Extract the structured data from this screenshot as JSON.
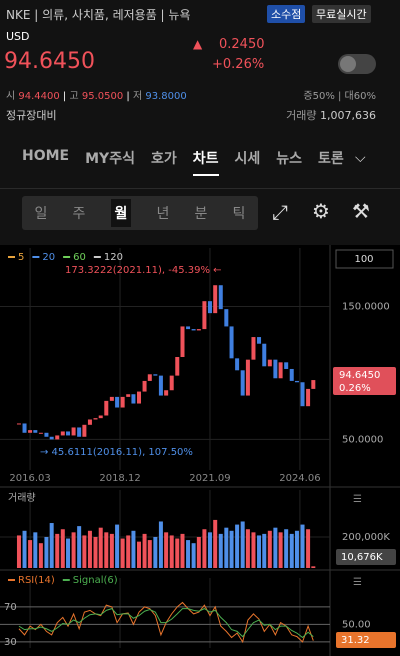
{
  "header": {
    "ticker": "NKE",
    "sector": "의류, 사치품, 레저용품",
    "exchange": "뉴욕",
    "badges": [
      "소수점",
      "무료실시간"
    ],
    "currency": "USD",
    "price": "94.6450",
    "change": "0.2450",
    "change_pct": "+0.26%",
    "open_label": "시",
    "open": "94.4400",
    "high_label": "고",
    "high": "95.0500",
    "low_label": "저",
    "low": "93.8000",
    "margin": "증50% | 대60%",
    "basis": "정규장대비",
    "volume_label": "거래량",
    "volume": "1,007,636"
  },
  "tabs": [
    "HOME",
    "MY주식",
    "호가",
    "차트",
    "시세",
    "뉴스",
    "토론"
  ],
  "active_tab": 3,
  "periods": [
    "일",
    "주",
    "월",
    "년",
    "분",
    "틱"
  ],
  "active_period": 2,
  "chart_data": [
    {
      "type": "candlestick",
      "count_box": "100",
      "moving_averages": [
        {
          "name": "5",
          "color": "#e8a33c"
        },
        {
          "name": "20",
          "color": "#4f8fe8"
        },
        {
          "name": "60",
          "color": "#6fcf5a"
        },
        {
          "name": "120",
          "color": "#c9c9c9"
        }
      ],
      "annotations": [
        "173.3222(2021.11), -45.39% ←",
        "→ 45.6111(2016.11), 107.50%"
      ],
      "price_tag": [
        "94.6450",
        "0.26%"
      ],
      "up_color": "#f0525a",
      "down_color": "#3f7fe0",
      "x": [
        2015.83,
        2016.0,
        2016.17,
        2016.33,
        2016.5,
        2016.67,
        2016.83,
        2017.0,
        2017.17,
        2017.33,
        2017.5,
        2017.67,
        2017.83,
        2018.0,
        2018.17,
        2018.33,
        2018.5,
        2018.67,
        2018.83,
        2019.0,
        2019.17,
        2019.33,
        2019.5,
        2019.67,
        2019.83,
        2020.0,
        2020.17,
        2020.33,
        2020.5,
        2020.67,
        2020.83,
        2021.0,
        2021.17,
        2021.33,
        2021.5,
        2021.67,
        2021.83,
        2022.0,
        2022.17,
        2022.33,
        2022.5,
        2022.67,
        2022.83,
        2023.0,
        2023.17,
        2023.33,
        2023.5,
        2023.67,
        2023.83,
        2024.0,
        2024.17,
        2024.33,
        2024.5,
        2024.67,
        2024.83
      ],
      "values": [
        62,
        55,
        57,
        55,
        55,
        52,
        50,
        53,
        56,
        53,
        59,
        52,
        61,
        65,
        66,
        68,
        79,
        82,
        74,
        82,
        84,
        77,
        86,
        94,
        99,
        98,
        83,
        87,
        98,
        112,
        135,
        133,
        132,
        133,
        154,
        145,
        166,
        148,
        135,
        111,
        102,
        83,
        110,
        127,
        122,
        105,
        110,
        96,
        108,
        103,
        94,
        93,
        75,
        88,
        94.645
      ],
      "xlim": [
        2015.25,
        2025.34
      ],
      "ylim": [
        27,
        194
      ],
      "xticks": [
        {
          "value": 2016.17,
          "label": "2016.03"
        },
        {
          "value": 2018.92,
          "label": "2018.12"
        },
        {
          "value": 2021.67,
          "label": "2021.09"
        },
        {
          "value": 2024.42,
          "label": "2024.06"
        }
      ],
      "yticks": [
        {
          "value": 150,
          "label": "150.0000"
        },
        {
          "value": 50,
          "label": "50.0000"
        }
      ]
    },
    {
      "type": "bar",
      "title": "거래량",
      "color": "#4f8fe8",
      "up_color": "#f0525a",
      "last_label": "10,676K",
      "values": [
        210000,
        240000,
        180000,
        230000,
        160000,
        200000,
        290000,
        220000,
        250000,
        190000,
        230000,
        270000,
        210000,
        240000,
        200000,
        260000,
        230000,
        220000,
        280000,
        190000,
        210000,
        240000,
        170000,
        220000,
        180000,
        200000,
        300000,
        230000,
        210000,
        190000,
        220000,
        180000,
        160000,
        200000,
        250000,
        230000,
        310000,
        220000,
        260000,
        240000,
        280000,
        300000,
        250000,
        230000,
        210000,
        220000,
        240000,
        260000,
        230000,
        250000,
        220000,
        240000,
        280000,
        250000,
        10676
      ],
      "ylim": [
        0,
        503000
      ],
      "yticks": [
        {
          "value": 200000,
          "label": "200,000K"
        }
      ]
    },
    {
      "type": "line",
      "last_label": "31.32",
      "series": [
        {
          "name": "RSI(14)",
          "color": "#e8742c",
          "values": [
            45,
            38,
            48,
            44,
            50,
            42,
            38,
            52,
            58,
            48,
            62,
            45,
            64,
            66,
            62,
            60,
            72,
            70,
            52,
            62,
            63,
            50,
            64,
            70,
            68,
            60,
            38,
            52,
            62,
            70,
            75,
            68,
            62,
            64,
            72,
            60,
            70,
            48,
            42,
            35,
            40,
            30,
            55,
            62,
            56,
            42,
            50,
            38,
            52,
            48,
            38,
            36,
            30,
            48,
            31.32
          ]
        },
        {
          "name": "Signal(6)",
          "color": "#4caf50",
          "values": [
            48,
            44,
            45,
            45,
            47,
            45,
            42,
            46,
            51,
            50,
            55,
            52,
            57,
            61,
            62,
            61,
            66,
            68,
            61,
            62,
            62,
            57,
            60,
            65,
            67,
            64,
            52,
            52,
            56,
            62,
            68,
            68,
            66,
            65,
            68,
            64,
            66,
            58,
            52,
            44,
            42,
            36,
            44,
            52,
            55,
            49,
            50,
            44,
            48,
            48,
            43,
            40,
            35,
            41,
            36
          ]
        }
      ],
      "ylim": [
        23,
        103
      ],
      "yticks": [
        70,
        30,
        {
          "value": 50,
          "label": "50.00"
        }
      ]
    }
  ]
}
